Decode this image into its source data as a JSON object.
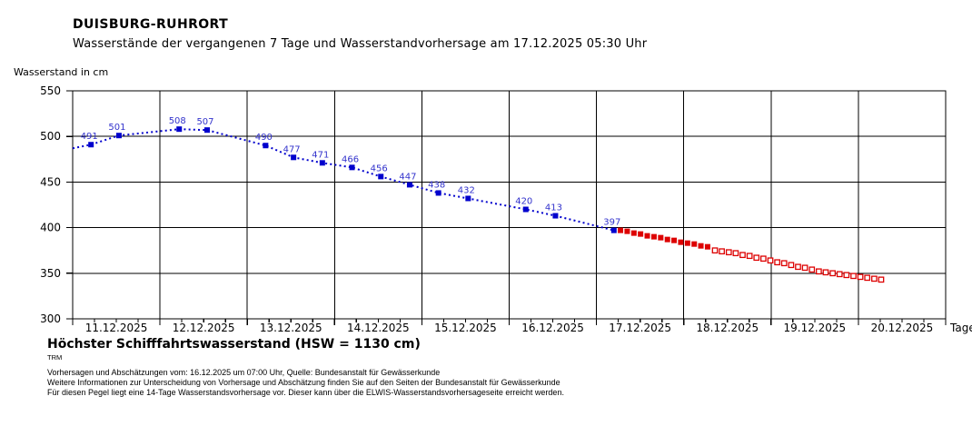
{
  "header": {
    "title": "DUISBURG-RUHRORT",
    "subtitle": "Wasserstände der vergangenen 7 Tage und Wasserstandvorhersage am 17.12.2025 05:30 Uhr"
  },
  "annotations": {
    "hsw": "Höchster Schifffahrtswasserstand (HSW = 1130 cm)",
    "trm": "TRM"
  },
  "footer": {
    "lines": [
      "Vorhersagen und Abschätzungen vom: 16.12.2025 um 07:00 Uhr, Quelle: Bundesanstalt für Gewässerkunde",
      "Weitere Informationen zur Unterscheidung von Vorhersage und Abschätzung finden Sie auf den Seiten der Bundesanstalt für Gewässerkunde",
      "Für diesen Pegel liegt eine 14-Tage Wasserstandsvorhersage vor. Dieser kann über die ELWIS-Wasserstandsvorhersageseite erreicht werden."
    ]
  },
  "chart_data": {
    "type": "line",
    "title": "DUISBURG-RUHRORT",
    "ylabel": "Wasserstand in cm",
    "xlabel": "Tage",
    "ylim": [
      300,
      550
    ],
    "y_ticks": [
      300,
      350,
      400,
      450,
      500,
      550
    ],
    "x_categories": [
      "11.12.2025",
      "12.12.2025",
      "13.12.2025",
      "14.12.2025",
      "15.12.2025",
      "16.12.2025",
      "17.12.2025",
      "18.12.2025",
      "19.12.2025",
      "20.12.2025"
    ],
    "x_minor_ticks_per_day": 4,
    "grid": true,
    "legend": "none",
    "colors": {
      "measured": "#0000cd",
      "value_label": "#3333cc",
      "forecast": "#dd0000",
      "axis": "#000000"
    },
    "series": [
      {
        "name": "measured",
        "marker": "filled-square",
        "line": "dotted",
        "color": "#0000cd",
        "show_value_labels": true,
        "line_start": {
          "day": 0.0,
          "value": 487
        },
        "points": [
          {
            "day": 0.21,
            "value": 491
          },
          {
            "day": 0.53,
            "value": 501
          },
          {
            "day": 1.22,
            "value": 508
          },
          {
            "day": 1.54,
            "value": 507
          },
          {
            "day": 2.21,
            "value": 490
          },
          {
            "day": 2.53,
            "value": 477
          },
          {
            "day": 2.86,
            "value": 471
          },
          {
            "day": 3.2,
            "value": 466
          },
          {
            "day": 3.53,
            "value": 456
          },
          {
            "day": 3.86,
            "value": 447
          },
          {
            "day": 4.19,
            "value": 438
          },
          {
            "day": 4.53,
            "value": 432
          },
          {
            "day": 5.19,
            "value": 420
          },
          {
            "day": 5.53,
            "value": 413
          },
          {
            "day": 6.2,
            "value": 397
          }
        ]
      },
      {
        "name": "vorhersage",
        "marker": "filled-square",
        "line": "none",
        "color": "#dd0000",
        "show_value_labels": false,
        "points": [
          {
            "day": 6.275,
            "value": 397
          },
          {
            "day": 6.352,
            "value": 396
          },
          {
            "day": 6.429,
            "value": 394
          },
          {
            "day": 6.505,
            "value": 393
          },
          {
            "day": 6.582,
            "value": 391
          },
          {
            "day": 6.659,
            "value": 390
          },
          {
            "day": 6.736,
            "value": 389
          },
          {
            "day": 6.813,
            "value": 387
          },
          {
            "day": 6.889,
            "value": 386
          },
          {
            "day": 6.966,
            "value": 384
          },
          {
            "day": 7.043,
            "value": 383
          },
          {
            "day": 7.12,
            "value": 382
          },
          {
            "day": 7.196,
            "value": 380
          },
          {
            "day": 7.273,
            "value": 379
          }
        ]
      },
      {
        "name": "abschaetzung",
        "marker": "open-square",
        "line": "none",
        "color": "#dd0000",
        "show_value_labels": false,
        "points": [
          {
            "day": 7.357,
            "value": 375
          },
          {
            "day": 7.436,
            "value": 374
          },
          {
            "day": 7.516,
            "value": 373
          },
          {
            "day": 7.595,
            "value": 372
          },
          {
            "day": 7.674,
            "value": 370
          },
          {
            "day": 7.754,
            "value": 369
          },
          {
            "day": 7.833,
            "value": 367
          },
          {
            "day": 7.912,
            "value": 366
          },
          {
            "day": 7.992,
            "value": 364
          },
          {
            "day": 8.071,
            "value": 362
          },
          {
            "day": 8.15,
            "value": 361
          },
          {
            "day": 8.23,
            "value": 359
          },
          {
            "day": 8.309,
            "value": 357
          },
          {
            "day": 8.388,
            "value": 356
          },
          {
            "day": 8.468,
            "value": 354
          },
          {
            "day": 8.547,
            "value": 352
          },
          {
            "day": 8.626,
            "value": 351
          },
          {
            "day": 8.706,
            "value": 350
          },
          {
            "day": 8.785,
            "value": 349
          },
          {
            "day": 8.864,
            "value": 348
          },
          {
            "day": 8.944,
            "value": 347
          },
          {
            "day": 9.023,
            "value": 346
          },
          {
            "day": 9.102,
            "value": 345
          },
          {
            "day": 9.182,
            "value": 344
          },
          {
            "day": 9.261,
            "value": 343
          }
        ]
      }
    ]
  }
}
